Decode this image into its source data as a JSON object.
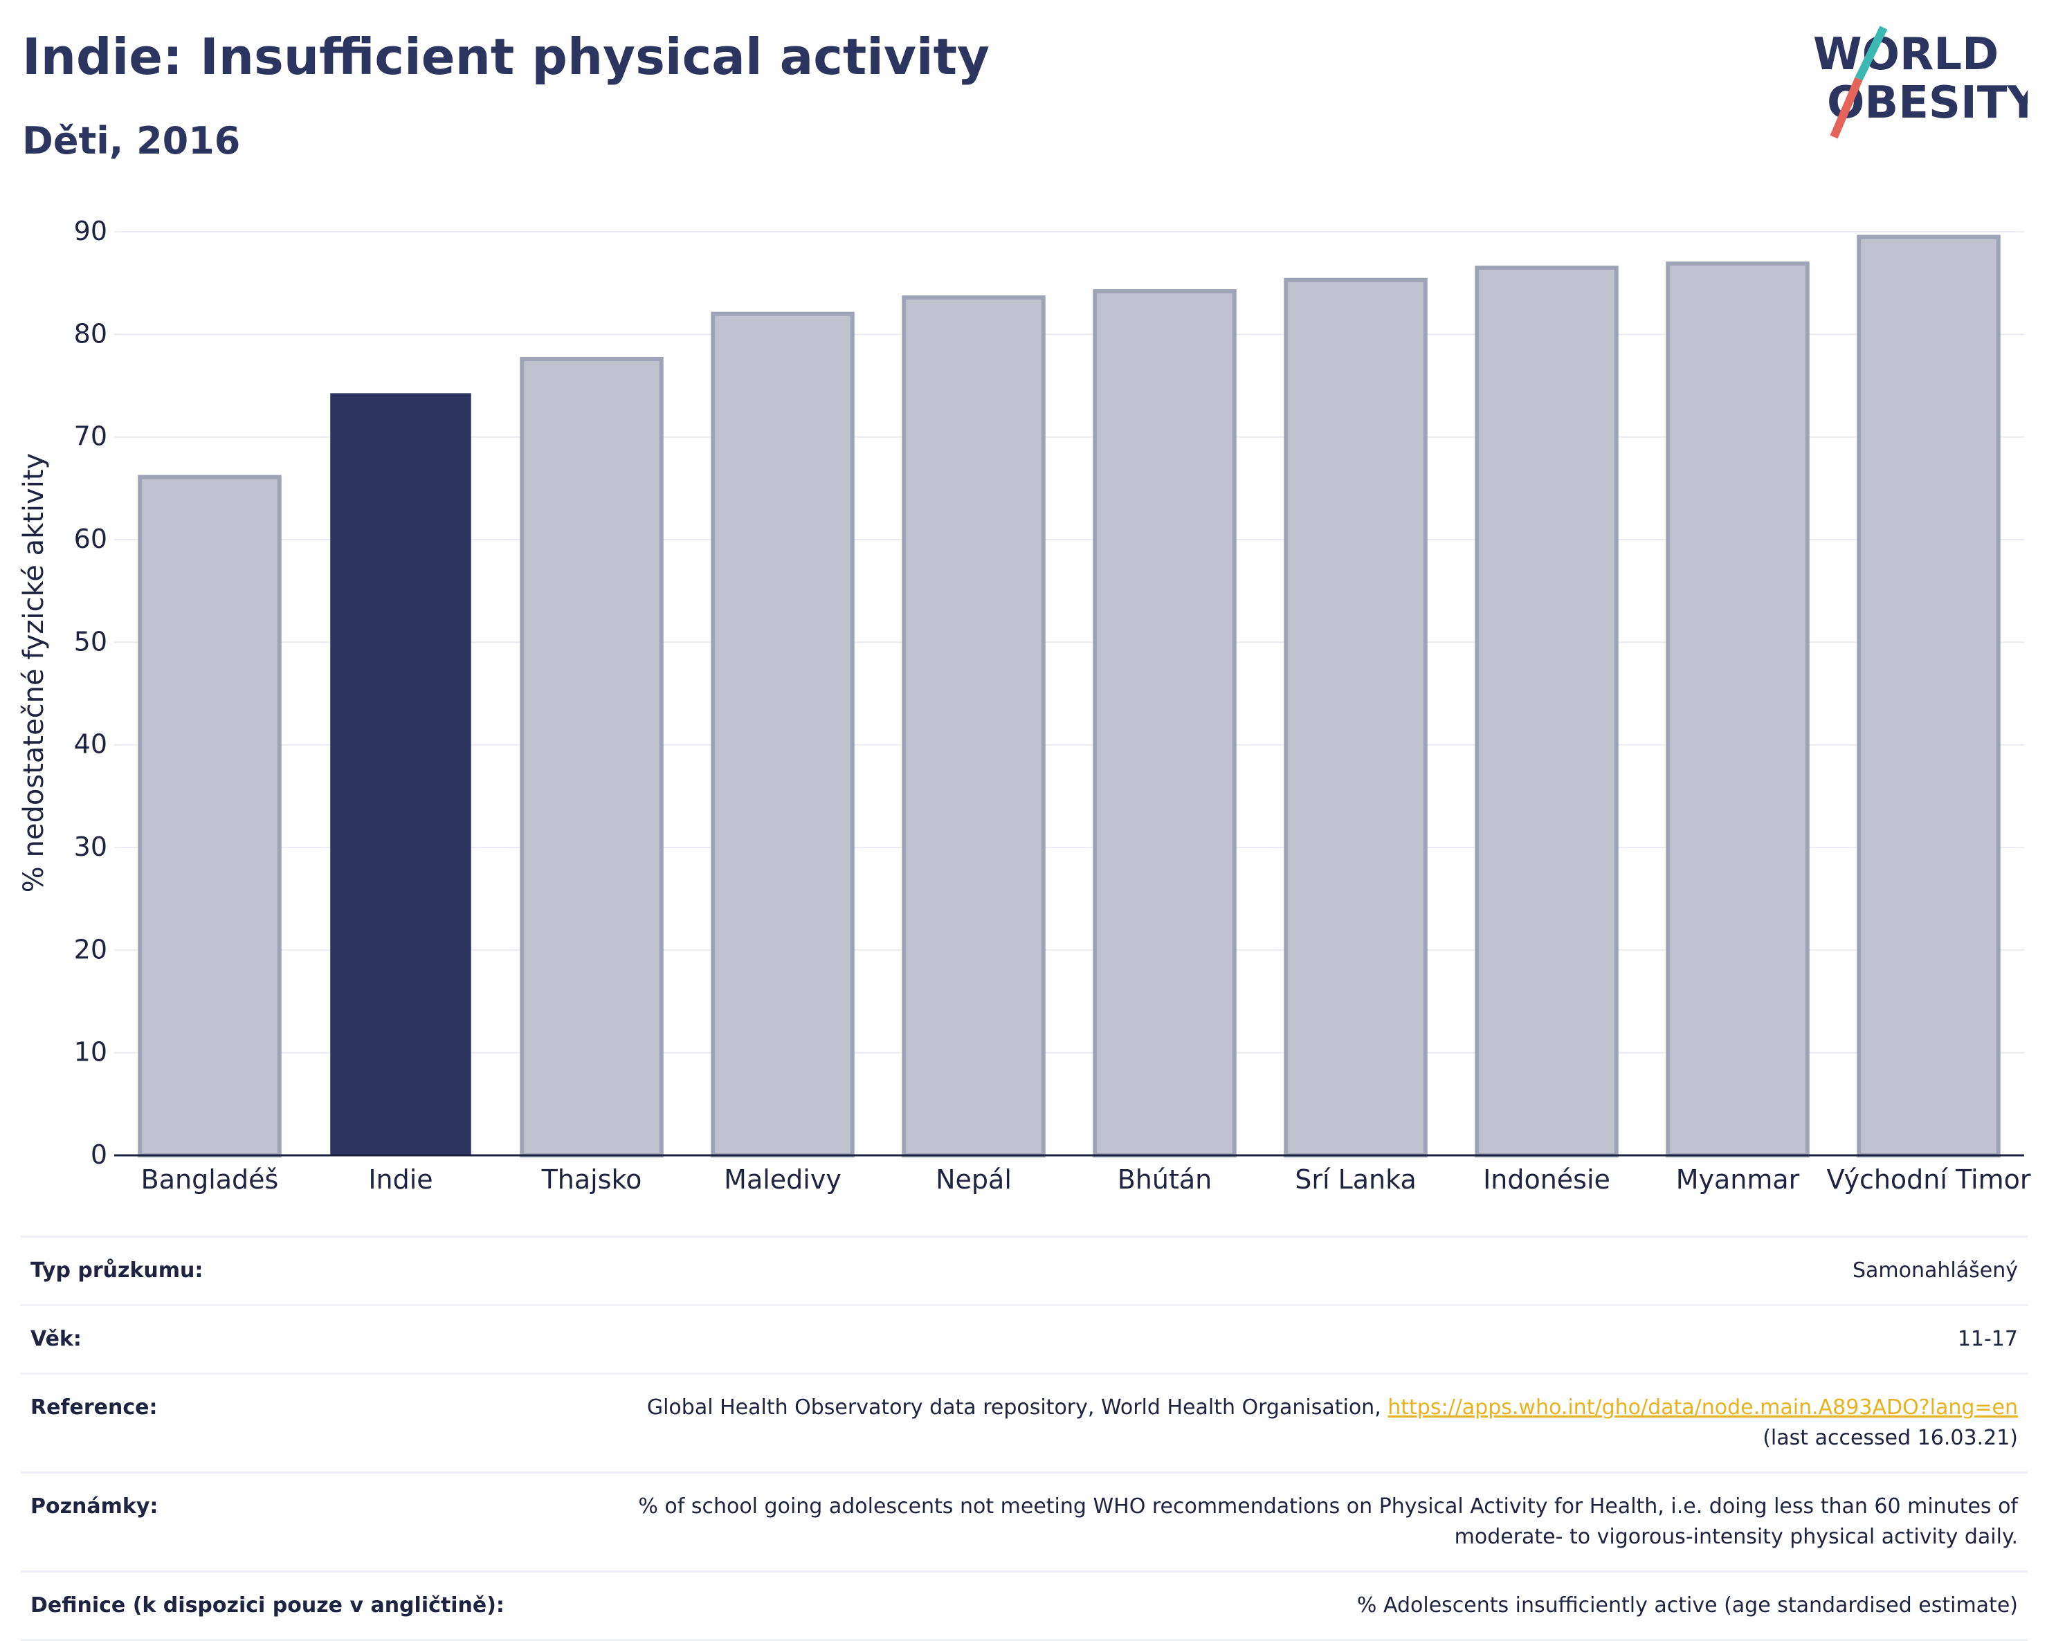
{
  "header": {
    "title": "Indie: Insufficient physical activity",
    "subtitle": "Děti, 2016"
  },
  "logo": {
    "line1": "WORLD",
    "line2": "OBESITY",
    "slash_colors": [
      "#3cb8b2",
      "#e4645a"
    ]
  },
  "colors": {
    "highlight": "#2b3560",
    "other": "#c0c3cf",
    "other_border": "#9ea3b8",
    "text": "#2b3560",
    "link": "#e8b21f"
  },
  "chart_data": {
    "type": "bar",
    "ylabel": "% nedostatečné fyzické aktivity",
    "ylim": [
      0,
      90
    ],
    "yticks": [
      0,
      10,
      20,
      30,
      40,
      50,
      60,
      70,
      80,
      90
    ],
    "grid": true,
    "categories": [
      "Bangladéš",
      "Indie",
      "Thajsko",
      "Maledivy",
      "Nepál",
      "Bhútán",
      "Srí Lanka",
      "Indonésie",
      "Myanmar",
      "Východní Timor"
    ],
    "values": [
      66.1,
      74.2,
      77.6,
      82.0,
      83.6,
      84.2,
      85.3,
      86.5,
      86.9,
      89.5
    ],
    "highlight": "Indie"
  },
  "info": {
    "survey_type": {
      "label": "Typ průzkumu:",
      "value": "Samonahlášený"
    },
    "age": {
      "label": "Věk:",
      "value": "11-17"
    },
    "reference": {
      "label": "Reference:",
      "text": "Global Health Observatory data repository, World Health Organisation, ",
      "link": "https://apps.who.int/gho/data/node.main.A893ADO?lang=en",
      "accessed": "(last accessed 16.03.21)"
    },
    "notes": {
      "label": "Poznámky:",
      "line1": "% of school going adolescents not meeting WHO recommendations on Physical Activity for Health, i.e. doing less than 60 minutes of",
      "line2": "moderate- to vigorous-intensity physical activity daily."
    },
    "definition": {
      "label": "Definice (k dispozici pouze v angličtině):",
      "value": "% Adolescents insufficiently active (age standardised estimate)"
    }
  }
}
